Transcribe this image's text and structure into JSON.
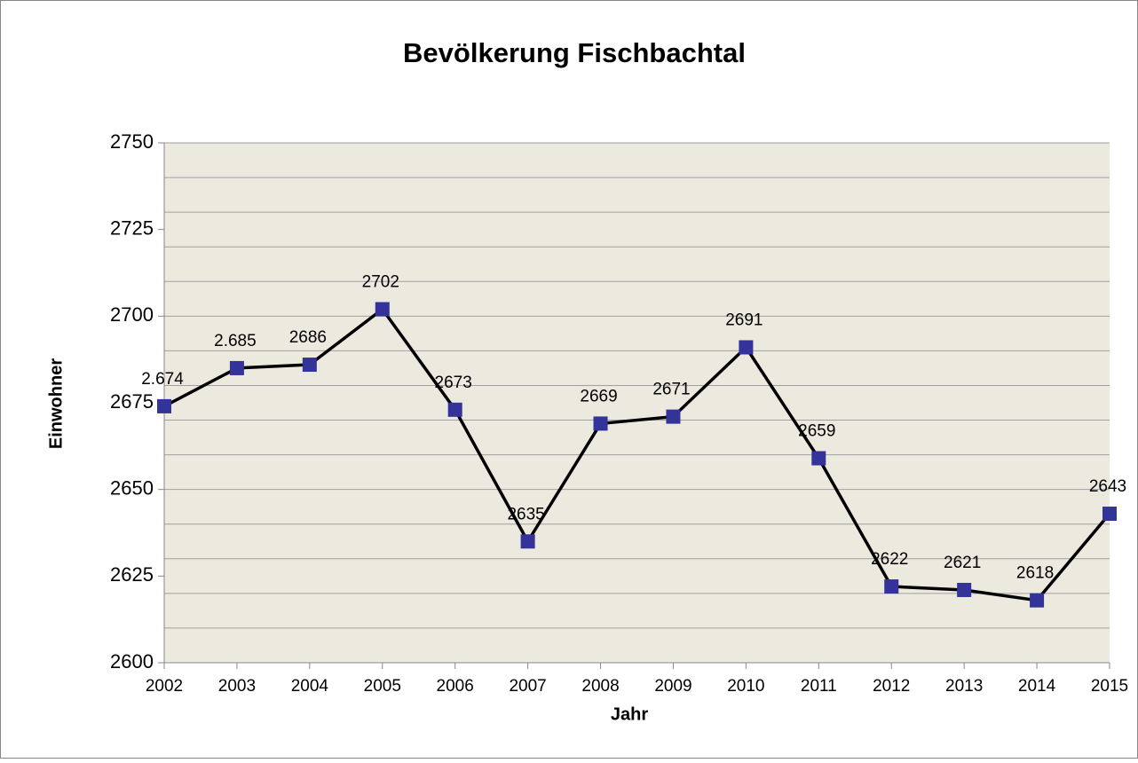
{
  "chart_data": {
    "type": "line",
    "title": "Bevölkerung Fischbachtal",
    "x_label": "Jahr",
    "y_label": "Einwohner",
    "x": [
      2002,
      2003,
      2004,
      2005,
      2006,
      2007,
      2008,
      2009,
      2010,
      2011,
      2012,
      2013,
      2014,
      2015
    ],
    "xlim": [
      2002,
      2015
    ],
    "xticks": [
      2002,
      2003,
      2004,
      2005,
      2006,
      2007,
      2008,
      2009,
      2010,
      2011,
      2012,
      2013,
      2014,
      2015
    ],
    "ylim": [
      2600,
      2750
    ],
    "yticks": [
      2600,
      2625,
      2650,
      2675,
      2700,
      2725,
      2750
    ],
    "ygrid": [
      2610,
      2620,
      2630,
      2640,
      2650,
      2660,
      2670,
      2680,
      2690,
      2700,
      2710,
      2720,
      2730,
      2740,
      2750
    ],
    "grid": true,
    "series": [
      {
        "name": "Einwohner",
        "color": "#333399",
        "line_color": "#000000",
        "values": [
          2674,
          2685,
          2686,
          2702,
          2673,
          2635,
          2669,
          2671,
          2691,
          2659,
          2622,
          2621,
          2618,
          2643
        ],
        "value_labels": [
          "2.674",
          "2.685",
          "2686",
          "2702",
          "2673",
          "2635",
          "2669",
          "2671",
          "2691",
          "2659",
          "2622",
          "2621",
          "2618",
          "2643"
        ]
      }
    ]
  }
}
